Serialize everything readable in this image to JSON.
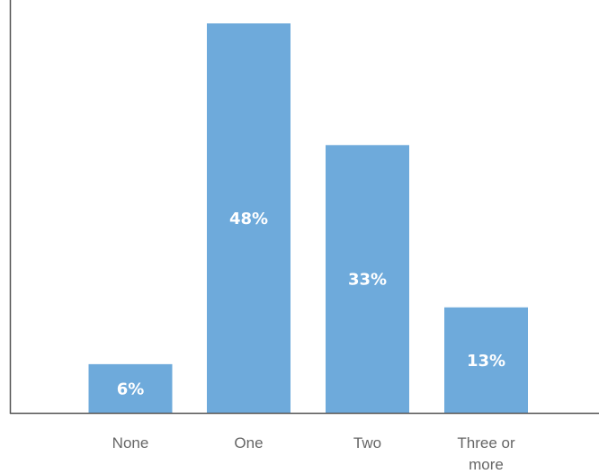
{
  "chart_data": {
    "type": "bar",
    "categories": [
      "None",
      "One",
      "Two",
      "Three or more"
    ],
    "category_lines": [
      [
        "None"
      ],
      [
        "One"
      ],
      [
        "Two"
      ],
      [
        "Three or",
        "more"
      ]
    ],
    "values": [
      6,
      48,
      33,
      13
    ],
    "data_labels": [
      "6%",
      "48%",
      "33%",
      "13%"
    ],
    "title": "",
    "xlabel": "",
    "ylabel": "",
    "ylim": [
      0,
      50
    ],
    "grid": false,
    "legend": "none",
    "bar_color": "#6eaadb",
    "axis_color": "#555555",
    "tick_label_color": "#666666",
    "value_label_color": "#ffffff"
  }
}
